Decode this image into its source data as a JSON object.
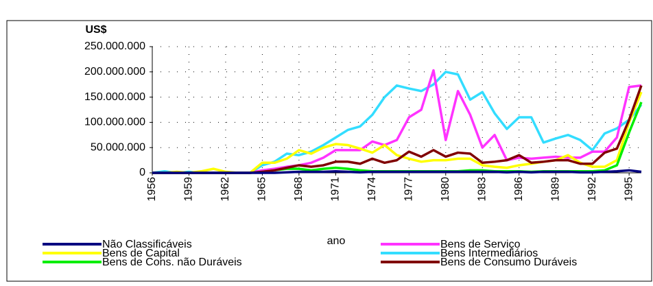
{
  "chart_data": {
    "type": "line",
    "y_label": "US$",
    "x_label": "ano",
    "x": [
      1956,
      1957,
      1958,
      1959,
      1960,
      1961,
      1962,
      1963,
      1964,
      1965,
      1966,
      1967,
      1968,
      1969,
      1970,
      1971,
      1972,
      1973,
      1974,
      1975,
      1976,
      1977,
      1978,
      1979,
      1980,
      1981,
      1982,
      1983,
      1984,
      1985,
      1986,
      1987,
      1988,
      1989,
      1990,
      1991,
      1992,
      1993,
      1994,
      1995,
      1996
    ],
    "xlim": [
      1956,
      1996
    ],
    "xticks": [
      1956,
      1959,
      1962,
      1965,
      1968,
      1971,
      1974,
      1977,
      1980,
      1983,
      1986,
      1989,
      1992,
      1995
    ],
    "ylim": [
      0,
      250000000
    ],
    "yticks": [
      0,
      {
        "value": 50000000,
        "label": "50.000.000"
      },
      {
        "value": 100000000,
        "label": "100.000.000"
      },
      {
        "value": 150000000,
        "label": "150.000.000"
      },
      {
        "value": 200000000,
        "label": "200.000.000"
      },
      {
        "value": 250000000,
        "label": "250.000.000"
      }
    ],
    "grid": true,
    "series": [
      {
        "name": "Não Classificáveis",
        "color": "#000080",
        "values": [
          0,
          0,
          0,
          0,
          0,
          0,
          0,
          0,
          0,
          0,
          0,
          1000000,
          2000000,
          2000000,
          2000000,
          3000000,
          2000000,
          1000000,
          2000000,
          2000000,
          2000000,
          2000000,
          2000000,
          2000000,
          2000000,
          2000000,
          2000000,
          2000000,
          2000000,
          1000000,
          2000000,
          1000000,
          2000000,
          2000000,
          2000000,
          1000000,
          1000000,
          2000000,
          3000000,
          5000000,
          2000000
        ]
      },
      {
        "name": "Bens de Capital",
        "color": "#ffff00",
        "values": [
          0,
          0,
          2000000,
          0,
          3000000,
          8000000,
          2000000,
          0,
          0,
          20000000,
          20000000,
          28000000,
          45000000,
          38000000,
          50000000,
          57000000,
          55000000,
          48000000,
          40000000,
          55000000,
          35000000,
          28000000,
          22000000,
          25000000,
          25000000,
          28000000,
          28000000,
          15000000,
          12000000,
          10000000,
          15000000,
          18000000,
          22000000,
          25000000,
          35000000,
          20000000,
          12000000,
          12000000,
          25000000,
          100000000,
          160000000
        ]
      },
      {
        "name": "Bens de Cons. não Duráveis",
        "color": "#00ee00",
        "values": [
          0,
          0,
          0,
          0,
          0,
          0,
          0,
          0,
          0,
          2000000,
          5000000,
          8000000,
          8000000,
          5000000,
          8000000,
          10000000,
          8000000,
          5000000,
          3000000,
          3000000,
          3000000,
          3000000,
          3000000,
          3000000,
          3000000,
          3000000,
          5000000,
          5000000,
          3000000,
          3000000,
          3000000,
          2000000,
          3000000,
          3000000,
          3000000,
          3000000,
          3000000,
          5000000,
          15000000,
          80000000,
          140000000
        ]
      },
      {
        "name": "Bens de Serviço",
        "color": "#ff33ff",
        "values": [
          0,
          0,
          0,
          0,
          0,
          0,
          0,
          0,
          0,
          5000000,
          8000000,
          12000000,
          15000000,
          20000000,
          30000000,
          45000000,
          45000000,
          45000000,
          62000000,
          55000000,
          65000000,
          110000000,
          125000000,
          203000000,
          65000000,
          162000000,
          115000000,
          50000000,
          75000000,
          25000000,
          30000000,
          28000000,
          30000000,
          32000000,
          30000000,
          30000000,
          42000000,
          42000000,
          70000000,
          170000000,
          173000000
        ]
      },
      {
        "name": "Bens Intermediários",
        "color": "#33ddff",
        "values": [
          0,
          3000000,
          0,
          2000000,
          0,
          0,
          0,
          0,
          0,
          15000000,
          22000000,
          38000000,
          35000000,
          42000000,
          55000000,
          70000000,
          85000000,
          92000000,
          115000000,
          150000000,
          173000000,
          167000000,
          162000000,
          175000000,
          200000000,
          195000000,
          145000000,
          160000000,
          118000000,
          87000000,
          110000000,
          110000000,
          60000000,
          68000000,
          75000000,
          65000000,
          45000000,
          78000000,
          88000000,
          105000000,
          135000000
        ]
      },
      {
        "name": "Bens de Consumo Duráveis",
        "color": "#800000",
        "values": [
          0,
          0,
          0,
          0,
          0,
          0,
          0,
          0,
          0,
          2000000,
          5000000,
          10000000,
          15000000,
          12000000,
          15000000,
          22000000,
          22000000,
          18000000,
          28000000,
          20000000,
          25000000,
          42000000,
          32000000,
          45000000,
          32000000,
          40000000,
          38000000,
          20000000,
          22000000,
          25000000,
          35000000,
          20000000,
          22000000,
          25000000,
          25000000,
          18000000,
          18000000,
          40000000,
          48000000,
          105000000,
          173000000
        ]
      }
    ]
  }
}
